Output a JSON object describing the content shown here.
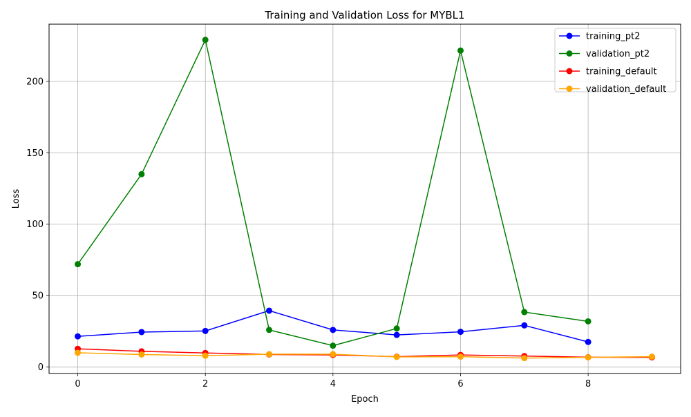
{
  "chart_data": {
    "type": "line",
    "title": "Training and Validation Loss for MYBL1",
    "xlabel": "Epoch",
    "ylabel": "Loss",
    "xlim": [
      -0.45,
      9.45
    ],
    "ylim": [
      -4.5,
      240
    ],
    "xticks": [
      0,
      2,
      4,
      6,
      8
    ],
    "yticks": [
      0,
      50,
      100,
      150,
      200
    ],
    "grid": true,
    "legend_position": "top-right",
    "series": [
      {
        "name": "training_pt2",
        "color": "#0000ff",
        "x": [
          0,
          1,
          2,
          3,
          4,
          5,
          6,
          7,
          8
        ],
        "y": [
          21.5,
          24.5,
          25.3,
          39.5,
          26.0,
          22.5,
          24.7,
          29.2,
          17.6
        ]
      },
      {
        "name": "validation_pt2",
        "color": "#008000",
        "x": [
          0,
          1,
          2,
          3,
          4,
          5,
          6,
          7,
          8
        ],
        "y": [
          72.0,
          135.0,
          229.0,
          26.0,
          15.0,
          27.0,
          221.5,
          38.5,
          32.0
        ]
      },
      {
        "name": "training_default",
        "color": "#ff0000",
        "x": [
          0,
          1,
          2,
          3,
          4,
          5,
          6,
          7,
          8,
          9
        ],
        "y": [
          12.8,
          11.0,
          9.9,
          8.8,
          8.5,
          7.3,
          8.5,
          7.7,
          6.9,
          6.8
        ]
      },
      {
        "name": "validation_default",
        "color": "#ffa500",
        "x": [
          0,
          1,
          2,
          3,
          4,
          5,
          6,
          7,
          8,
          9
        ],
        "y": [
          10.0,
          8.8,
          8.0,
          9.0,
          9.0,
          7.1,
          7.3,
          6.3,
          6.8,
          7.3
        ]
      }
    ]
  }
}
